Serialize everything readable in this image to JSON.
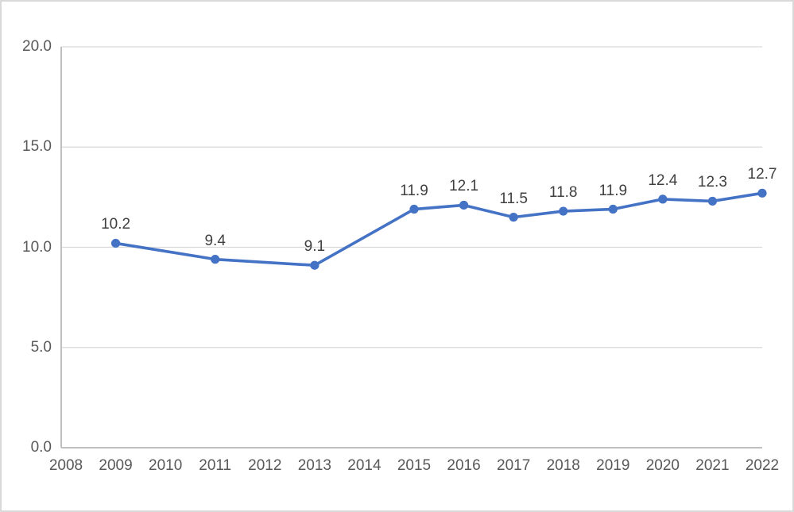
{
  "chart": {
    "background": "#ffffff",
    "border_color": "#d9d9d9"
  },
  "colors": {
    "line": "#4472c4",
    "marker": "#4472c4",
    "gridline": "#d9d9d9",
    "axis_line": "#bfbfbf",
    "tick_label": "#595959",
    "data_label": "#404040"
  },
  "chart_data": {
    "type": "line",
    "title": "",
    "categories": [
      "2008",
      "2009",
      "2010",
      "2011",
      "2012",
      "2013",
      "2014",
      "2015",
      "2016",
      "2017",
      "2018",
      "2019",
      "2020",
      "2021",
      "2022"
    ],
    "series": [
      {
        "points": [
          {
            "category": "2009",
            "value": 10.2,
            "label": "10.2"
          },
          {
            "category": "2011",
            "value": 9.4,
            "label": "9.4"
          },
          {
            "category": "2013",
            "value": 9.1,
            "label": "9.1"
          },
          {
            "category": "2015",
            "value": 11.9,
            "label": "11.9"
          },
          {
            "category": "2016",
            "value": 12.1,
            "label": "12.1"
          },
          {
            "category": "2017",
            "value": 11.5,
            "label": "11.5"
          },
          {
            "category": "2018",
            "value": 11.8,
            "label": "11.8"
          },
          {
            "category": "2019",
            "value": 11.9,
            "label": "11.9"
          },
          {
            "category": "2020",
            "value": 12.4,
            "label": "12.4"
          },
          {
            "category": "2021",
            "value": 12.3,
            "label": "12.3"
          },
          {
            "category": "2022",
            "value": 12.7,
            "label": "12.7"
          }
        ]
      }
    ],
    "y_ticks": [
      {
        "value": 0,
        "label": "0.0"
      },
      {
        "value": 5,
        "label": "5.0"
      },
      {
        "value": 10,
        "label": "10.0"
      },
      {
        "value": 15,
        "label": "15.0"
      },
      {
        "value": 20,
        "label": "20.0"
      }
    ],
    "ylim": [
      0,
      20
    ],
    "grid": true,
    "legend": "none",
    "data_labels_position": "above",
    "marker": "circle"
  }
}
